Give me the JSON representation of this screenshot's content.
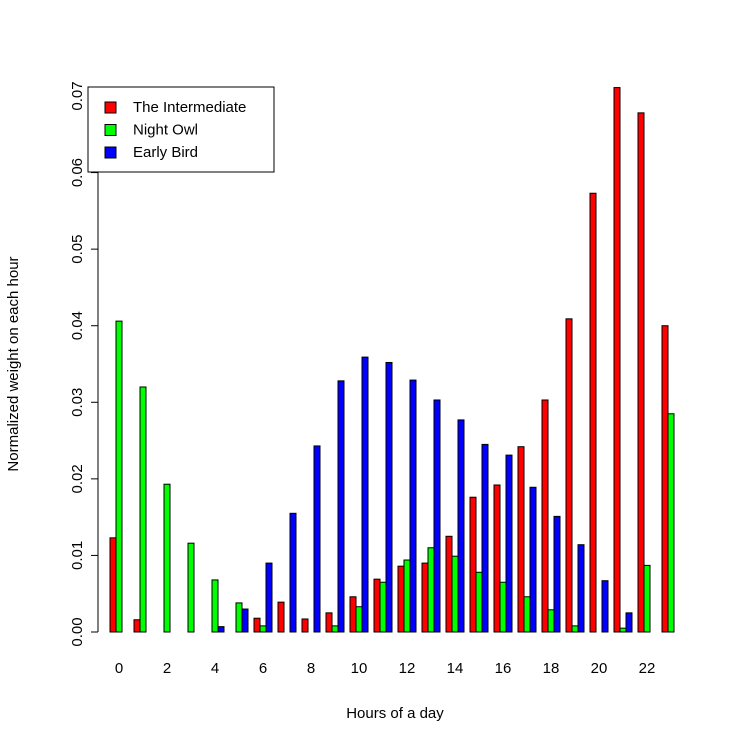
{
  "chart_data": {
    "type": "bar",
    "x_label": "Hours of a day",
    "y_label": "Normalized weight on each hour",
    "categories": [
      "0",
      null,
      "2",
      null,
      "4",
      null,
      "6",
      null,
      "8",
      null,
      "10",
      null,
      "12",
      null,
      "14",
      null,
      "16",
      null,
      "18",
      null,
      "20",
      null,
      "22",
      null
    ],
    "series": [
      {
        "name": "The Intermediate",
        "color": "#ff0000",
        "values": [
          0.0123,
          0.0016,
          0,
          0,
          0,
          0,
          0.0018,
          0.0039,
          0.0017,
          0.0025,
          0.0046,
          0.0069,
          0.0086,
          0.009,
          0.0125,
          0.0176,
          0.0192,
          0.0242,
          0.0303,
          0.0409,
          0.0573,
          0.0711,
          0.0678,
          0.04
        ]
      },
      {
        "name": "Night Owl",
        "color": "#00ff00",
        "values": [
          0.0406,
          0.032,
          0.0193,
          0.0116,
          0.0068,
          0.0038,
          0.0008,
          0,
          0,
          0.0008,
          0.0033,
          0.0065,
          0.0094,
          0.011,
          0.0099,
          0.0078,
          0.0065,
          0.0046,
          0.0029,
          0.0008,
          0,
          0.0005,
          0.0087,
          0.0285
        ]
      },
      {
        "name": "Early Bird",
        "color": "#0000ff",
        "values": [
          0,
          0,
          0,
          0,
          0.0007,
          0.003,
          0.009,
          0.0155,
          0.0243,
          0.0328,
          0.0359,
          0.0352,
          0.0329,
          0.0303,
          0.0277,
          0.0245,
          0.0231,
          0.0189,
          0.0151,
          0.0114,
          0.0067,
          0.0025,
          0,
          0
        ]
      }
    ],
    "ylim": [
      0,
      0.07
    ],
    "yticks": [
      {
        "value": 0,
        "label": "0.00"
      },
      {
        "value": 0.01,
        "label": "0.01"
      },
      {
        "value": 0.02,
        "label": "0.02"
      },
      {
        "value": 0.03,
        "label": "0.03"
      },
      {
        "value": 0.04,
        "label": "0.04"
      },
      {
        "value": 0.05,
        "label": "0.05"
      },
      {
        "value": 0.06,
        "label": "0.06"
      },
      {
        "value": 0.07,
        "label": "0.07"
      }
    ],
    "legend": "top-left"
  }
}
